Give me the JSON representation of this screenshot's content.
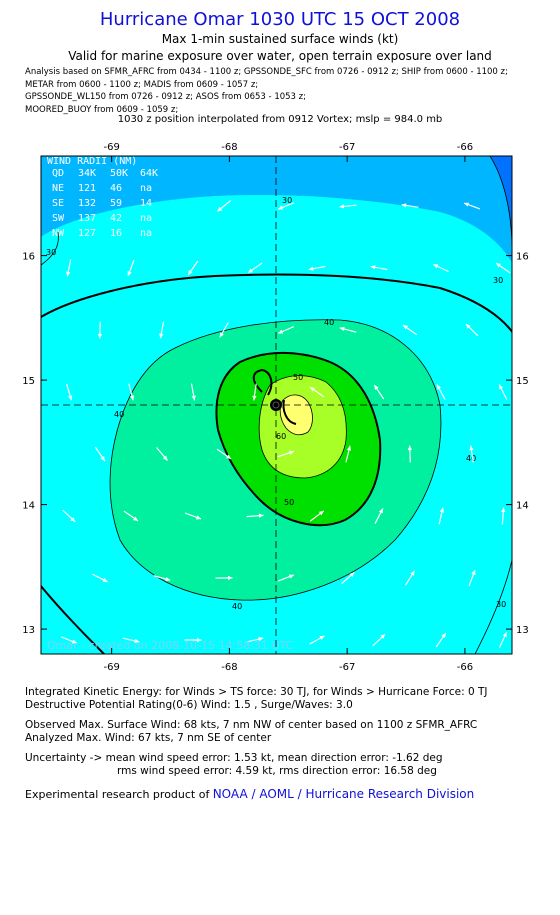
{
  "header": {
    "title": "Hurricane Omar 1030 UTC 15 OCT 2008",
    "subtitle": "Max 1-min sustained surface winds (kt)",
    "validity": "Valid for marine exposure over water, open terrain exposure over land",
    "analysis_lines": [
      "Analysis based on   SFMR_AFRC from 0434 - 1100 z;  GPSSONDE_SFC from 0726 - 0912 z;  SHIP from 0600 - 1100 z;",
      "METAR from 0600 - 1100 z;  MADIS from 0609 - 1057 z;",
      "GPSSONDE_WL150 from 0726 - 0912 z;  ASOS from 0653 - 1053 z;",
      "MOORED_BUOY from 0609 - 1059 z;"
    ],
    "position_note": "1030 z position interpolated from 0912 Vortex; mslp = 984.0 mb"
  },
  "map": {
    "lon_ticks": [
      -69,
      -68,
      -67,
      -66
    ],
    "lat_ticks": [
      16,
      15,
      14,
      13
    ],
    "lon_range": [
      -69.6,
      -65.6
    ],
    "lat_range": [
      12.8,
      16.8
    ],
    "center": {
      "lon": -67.5,
      "lat": 14.75
    },
    "contour_labels": [
      "30",
      "40",
      "50",
      "60"
    ],
    "watermark": "Omar - created on 2008-10-15 14:58:31 UTC",
    "colors": {
      "lt20": "#0072ff",
      "20_30": "#00b7ff",
      "30_40": "#00ffff",
      "40_50": "#00f0a0",
      "50_60": "#00e000",
      "60_65": "#a8ff28",
      "gt65": "#ffff70",
      "arrow": "#ffffff",
      "contour": "#000000"
    },
    "wind_radii": {
      "title": "WIND RADII (NM)",
      "header": [
        "QD",
        "34K",
        "50K",
        "64K"
      ],
      "rows": [
        [
          "NE",
          "121",
          "46",
          "na"
        ],
        [
          "SE",
          "132",
          "59",
          "14"
        ],
        [
          "SW",
          "137",
          "42",
          "na"
        ],
        [
          "NW",
          "127",
          "16",
          "na"
        ]
      ]
    }
  },
  "stats": {
    "ike": "Integrated Kinetic Energy:  for Winds > TS force: 30 TJ,  for Winds > Hurricane Force: 0 TJ",
    "dpr": "Destructive Potential Rating(0-6)   Wind: 1.5 , Surge/Waves: 3.0",
    "observed": "Observed Max. Surface Wind: 68 kts, 7 nm NW of center based on 1100 z SFMR_AFRC",
    "analyzed": "Analyzed Max. Wind: 67 kts, 7 nm SE of center",
    "uncertainty1": "Uncertainty -> mean wind speed error: 1.53 kt,   mean direction error:  -1.62 deg",
    "uncertainty2": "rms wind speed error: 4.59 kt,   rms direction error: 16.58 deg",
    "credit_prefix": "Experimental research product of",
    "credit_org": "NOAA / AOML / Hurricane Research Division"
  }
}
